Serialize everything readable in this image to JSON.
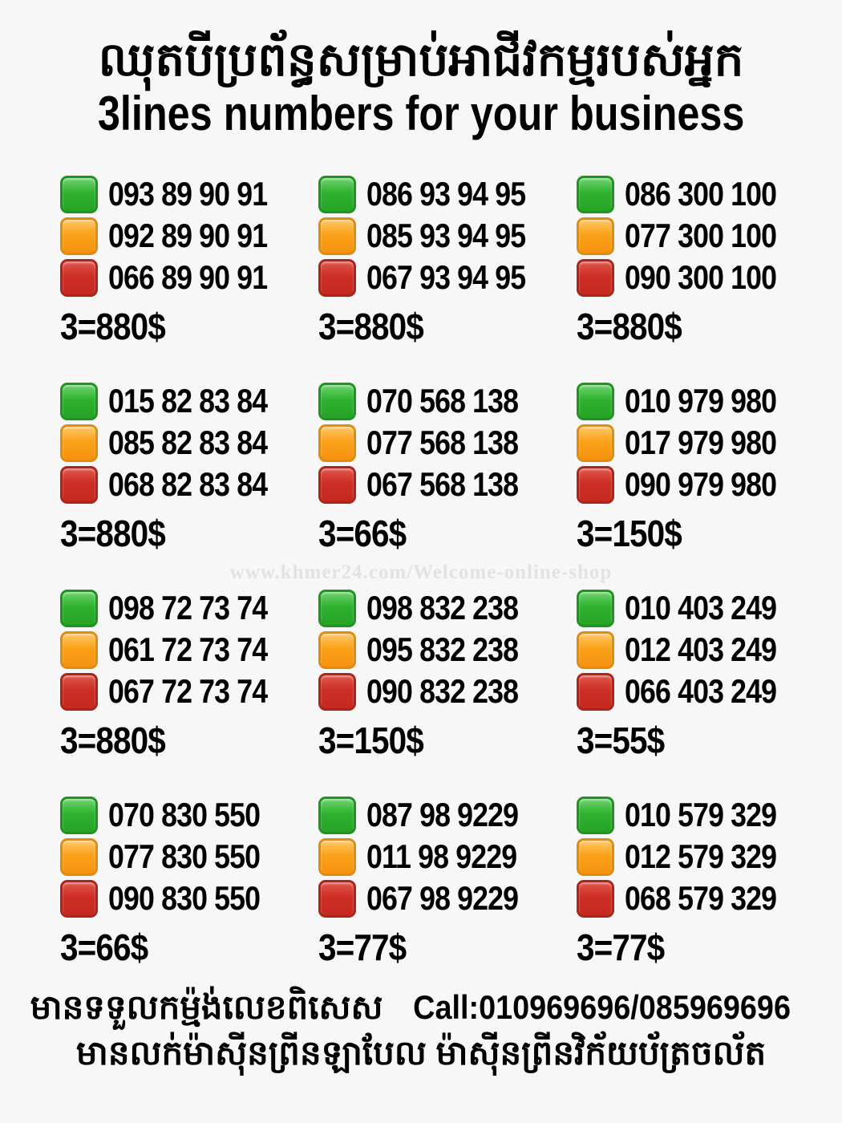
{
  "title": {
    "khmer": "ឈុតបីប្រព័ន្ធសម្រាប់អាជីវកម្មរបស់អ្នក",
    "english": "3lines numbers for your business"
  },
  "watermark": "www.khmer24.com/Welcome-online-shop",
  "colors": {
    "background": "#f7f7f7",
    "text": "#000000",
    "green_square": "#2eb22e",
    "orange_square": "#fba119",
    "red_square": "#cd2d24"
  },
  "blocks": [
    {
      "price": "3=880$",
      "lines": [
        {
          "color": "green",
          "number": "093 89 90 91"
        },
        {
          "color": "orange",
          "number": "092 89 90 91"
        },
        {
          "color": "red",
          "number": "066 89 90 91"
        }
      ]
    },
    {
      "price": "3=880$",
      "lines": [
        {
          "color": "green",
          "number": "086 93 94 95"
        },
        {
          "color": "orange",
          "number": "085 93 94 95"
        },
        {
          "color": "red",
          "number": "067 93 94 95"
        }
      ]
    },
    {
      "price": "3=880$",
      "lines": [
        {
          "color": "green",
          "number": "086 300 100"
        },
        {
          "color": "orange",
          "number": "077 300 100"
        },
        {
          "color": "red",
          "number": "090 300 100"
        }
      ]
    },
    {
      "price": "3=880$",
      "lines": [
        {
          "color": "green",
          "number": "015 82 83 84"
        },
        {
          "color": "orange",
          "number": "085 82 83 84"
        },
        {
          "color": "red",
          "number": "068 82 83 84"
        }
      ]
    },
    {
      "price": "3=66$",
      "lines": [
        {
          "color": "green",
          "number": "070 568 138"
        },
        {
          "color": "orange",
          "number": "077 568 138"
        },
        {
          "color": "red",
          "number": "067 568 138"
        }
      ]
    },
    {
      "price": "3=150$",
      "lines": [
        {
          "color": "green",
          "number": "010 979 980"
        },
        {
          "color": "orange",
          "number": "017 979 980"
        },
        {
          "color": "red",
          "number": "090 979 980"
        }
      ]
    },
    {
      "price": "3=880$",
      "lines": [
        {
          "color": "green",
          "number": "098 72 73 74"
        },
        {
          "color": "orange",
          "number": "061 72 73 74"
        },
        {
          "color": "red",
          "number": "067 72 73 74"
        }
      ]
    },
    {
      "price": "3=150$",
      "lines": [
        {
          "color": "green",
          "number": "098 832 238"
        },
        {
          "color": "orange",
          "number": "095 832 238"
        },
        {
          "color": "red",
          "number": "090 832 238"
        }
      ]
    },
    {
      "price": "3=55$",
      "lines": [
        {
          "color": "green",
          "number": "010 403 249"
        },
        {
          "color": "orange",
          "number": "012 403 249"
        },
        {
          "color": "red",
          "number": "066 403 249"
        }
      ]
    },
    {
      "price": "3=66$",
      "lines": [
        {
          "color": "green",
          "number": "070 830 550"
        },
        {
          "color": "orange",
          "number": "077 830 550"
        },
        {
          "color": "red",
          "number": "090 830 550"
        }
      ]
    },
    {
      "price": "3=77$",
      "lines": [
        {
          "color": "green",
          "number": "087 98 9229"
        },
        {
          "color": "orange",
          "number": "011 98 9229"
        },
        {
          "color": "red",
          "number": "067 98 9229"
        }
      ]
    },
    {
      "price": "3=77$",
      "lines": [
        {
          "color": "green",
          "number": "010 579 329"
        },
        {
          "color": "orange",
          "number": "012 579 329"
        },
        {
          "color": "red",
          "number": "068 579 329"
        }
      ]
    }
  ],
  "footer": {
    "line1_khmer": "មានទទួលកម្ម៉ង់លេខពិសេស",
    "line1_call": "Call:010969696/085969696",
    "line2_khmer": "មានលក់ម៉ាស៊ីនព្រីនឡាបែល ម៉ាស៊ីនព្រីនវិក័យប័ត្រចល័ត"
  }
}
